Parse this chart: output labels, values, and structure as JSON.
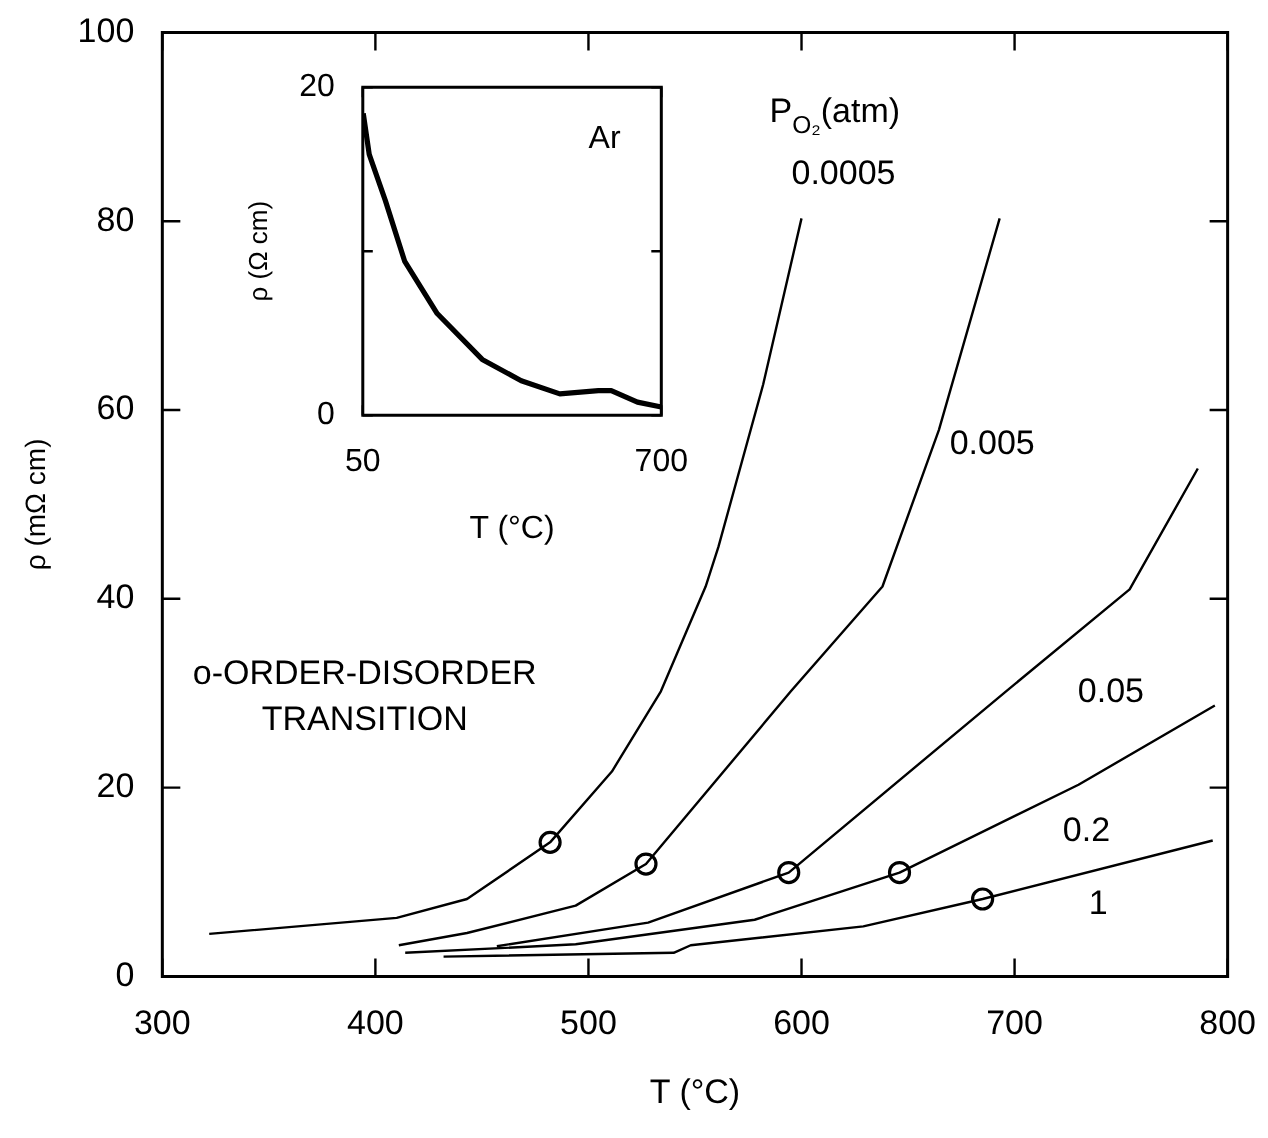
{
  "chart_data": [
    {
      "type": "line",
      "xlabel": "T (°C)",
      "ylabel": "ρ (mΩ cm)",
      "xlim": [
        300,
        800
      ],
      "xticks": [
        300,
        400,
        500,
        600,
        700,
        800
      ],
      "ylim": [
        0,
        100
      ],
      "yticks": [
        0,
        20,
        40,
        60,
        80,
        100
      ],
      "legend": false,
      "series": [
        {
          "name": "0.0005",
          "color": "#000000",
          "x": [
            322,
            410,
            443,
            482,
            511,
            534,
            555,
            561,
            582,
            600
          ],
          "values": [
            4.5,
            6.2,
            8.2,
            14.2,
            21.7,
            30.2,
            41.3,
            45.5,
            62.7,
            80.3
          ]
        },
        {
          "name": "0.005",
          "color": "#000000",
          "x": [
            411,
            443,
            494,
            527,
            595,
            638,
            664.5,
            693
          ],
          "values": [
            3.3,
            4.6,
            7.5,
            11.9,
            30.2,
            41.3,
            57.9,
            80.3
          ]
        },
        {
          "name": "0.05",
          "color": "#000000",
          "x": [
            457,
            528,
            594,
            696,
            754,
            786
          ],
          "values": [
            3.2,
            5.7,
            11.0,
            30.2,
            41.0,
            53.8
          ]
        },
        {
          "name": "0.2",
          "color": "#000000",
          "x": [
            414,
            494,
            578,
            646,
            730,
            794
          ],
          "values": [
            2.5,
            3.4,
            6.0,
            11.0,
            20.3,
            28.7
          ]
        },
        {
          "name": "1",
          "color": "#000000",
          "x": [
            432,
            540,
            548,
            629,
            685,
            793
          ],
          "values": [
            2.1,
            2.5,
            3.3,
            5.3,
            8.2,
            14.4
          ]
        },
        {
          "type": "scatter",
          "marker": "circle",
          "color": "#000000",
          "x": [
            482,
            527,
            594,
            646,
            685
          ],
          "values": [
            14.2,
            11.9,
            11.0,
            11.0,
            8.2
          ]
        }
      ],
      "annotations": [
        "P$_{O₂}$(atm)",
        "o-ORDER-DISORDER TRANSITION"
      ]
    },
    {
      "type": "line",
      "xlabel": "T (°C)",
      "ylabel": "ρ (Ω cm)",
      "xlim": [
        50,
        700
      ],
      "xticks": [
        50,
        700
      ],
      "ylim": [
        0,
        20
      ],
      "yticks": [
        0,
        {
          "value": 10,
          "label": null
        },
        20
      ],
      "legend": false,
      "series": [
        {
          "color": "#000000",
          "x": [
            51,
            64,
            99,
            141,
            212,
            310,
            395,
            479,
            563,
            591,
            648,
            700
          ],
          "values": [
            18.4,
            15.9,
            13.1,
            9.4,
            6.2,
            3.4,
            2.1,
            1.3,
            1.5,
            1.5,
            0.8,
            0.5
          ]
        }
      ],
      "annotations": [
        "Ar"
      ]
    }
  ]
}
